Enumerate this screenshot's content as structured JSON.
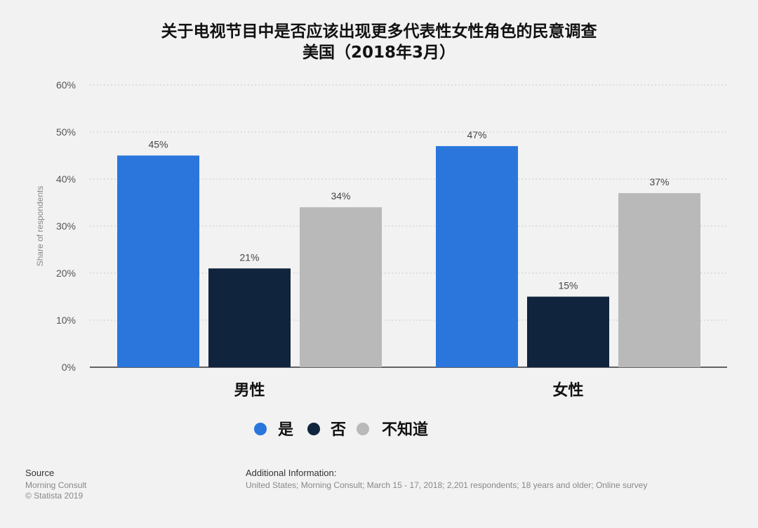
{
  "chart_data": {
    "type": "bar",
    "title": "关于电视节目中是否应该出现更多代表性女性角色的民意调查",
    "subtitle": "美国（2018年3月）",
    "ylabel": "Share of respondents",
    "ylim": [
      0,
      60
    ],
    "yticks": [
      "0%",
      "10%",
      "20%",
      "30%",
      "40%",
      "50%",
      "60%"
    ],
    "categories": [
      "男性",
      "女性"
    ],
    "series": [
      {
        "name": "是",
        "values": [
          45,
          47
        ],
        "color": "#2a76dd"
      },
      {
        "name": "否",
        "values": [
          21,
          15
        ],
        "color": "#10243e"
      },
      {
        "name": "不知道",
        "values": [
          34,
          37
        ],
        "color": "#b9b9b9"
      }
    ],
    "value_suffix": "%",
    "grid": true,
    "legend_position": "bottom"
  },
  "footer": {
    "source_title": "Source",
    "source_lines": [
      "Morning Consult",
      "© Statista 2019"
    ],
    "info_title": "Additional Information:",
    "info_text": "United States; Morning Consult; March 15 - 17, 2018; 2,201 respondents; 18 years and older; Online survey"
  }
}
